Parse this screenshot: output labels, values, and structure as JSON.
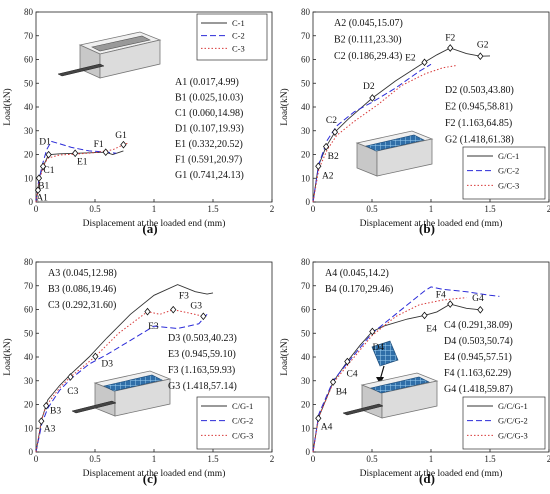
{
  "colors": {
    "series1": "#333333",
    "series2": "#2b2bd8",
    "series3": "#d83a3a",
    "grid": "#cccccc"
  },
  "chart_data": [
    {
      "type": "line",
      "panel_label": "(a)",
      "xlabel": "Displacement at the loaded end (mm)",
      "ylabel": "Load(kN)",
      "xlim": [
        0,
        2
      ],
      "ylim": [
        0,
        80
      ],
      "xticks": [
        0,
        0.5,
        1,
        1.5,
        2
      ],
      "yticks": [
        0,
        10,
        20,
        30,
        40,
        50,
        60,
        70,
        80
      ],
      "grid": false,
      "legend_position": "top-right",
      "series": [
        {
          "name": "C-1",
          "style": "solid",
          "x": [
            0,
            0.017,
            0.025,
            0.06,
            0.107,
            0.2,
            0.332,
            0.45,
            0.591,
            0.65,
            0.741
          ],
          "y": [
            0,
            4.99,
            10.03,
            14.98,
            19.93,
            20.3,
            20.52,
            20.7,
            20.97,
            20.0,
            21.5
          ]
        },
        {
          "name": "C-2",
          "style": "dashed",
          "x": [
            0,
            0.02,
            0.05,
            0.09,
            0.13,
            0.2,
            0.3,
            0.45,
            0.6,
            0.68
          ],
          "y": [
            0,
            8,
            15,
            22,
            25.5,
            24.5,
            23,
            21.5,
            21,
            20.5
          ]
        },
        {
          "name": "C-3",
          "style": "dotted",
          "x": [
            0,
            0.03,
            0.06,
            0.1,
            0.2,
            0.35,
            0.5,
            0.65,
            0.741,
            0.78
          ],
          "y": [
            0,
            9,
            15,
            18.5,
            19.8,
            20.2,
            20.8,
            22,
            24.13,
            24.8
          ]
        }
      ],
      "points": [
        {
          "label": "A1",
          "x": 0.017,
          "y": 4.99,
          "dx": 0.035,
          "dy": -3
        },
        {
          "label": "B1",
          "x": 0.025,
          "y": 10.03,
          "dx": 0.04,
          "dy": -3
        },
        {
          "label": "C1",
          "x": 0.06,
          "y": 14.98,
          "dx": 0.05,
          "dy": -1.5
        },
        {
          "label": "D1",
          "x": 0.107,
          "y": 19.93,
          "dx": -0.03,
          "dy": 5.5
        },
        {
          "label": "E1",
          "x": 0.332,
          "y": 20.52,
          "dx": 0.06,
          "dy": -3.5
        },
        {
          "label": "F1",
          "x": 0.591,
          "y": 20.97,
          "dx": -0.06,
          "dy": 3.5
        },
        {
          "label": "G1",
          "x": 0.741,
          "y": 24.13,
          "dx": -0.02,
          "dy": 4
        }
      ],
      "annotations": [
        "A1 (0.017,4.99)",
        "B1 (0.025,10.03)",
        "C1 (0.060,14.98)",
        "D1 (0.107,19.93)",
        "E1 (0.332,20.52)",
        "F1 (0.591,20.97)",
        "G1 (0.741,24.13)"
      ]
    },
    {
      "type": "line",
      "panel_label": "(b)",
      "xlabel": "Displacement at the loaded end (mm)",
      "ylabel": "Load(kN)",
      "xlim": [
        0,
        2
      ],
      "ylim": [
        0,
        80
      ],
      "xticks": [
        0,
        0.5,
        1,
        1.5,
        2
      ],
      "yticks": [
        0,
        10,
        20,
        30,
        40,
        50,
        60,
        70,
        80
      ],
      "grid": false,
      "legend_position": "bottom-right",
      "series": [
        {
          "name": "G/C-1",
          "style": "solid",
          "x": [
            0,
            0.045,
            0.111,
            0.186,
            0.3,
            0.503,
            0.7,
            0.945,
            1.05,
            1.163,
            1.3,
            1.418,
            1.5
          ],
          "y": [
            0,
            15.07,
            23.3,
            29.43,
            35,
            43.8,
            51,
            58.81,
            62,
            64.85,
            62.5,
            61.38,
            61.5
          ]
        },
        {
          "name": "G/C-2",
          "style": "dashed",
          "x": [
            0,
            0.05,
            0.12,
            0.2,
            0.35,
            0.5,
            0.7,
            0.9,
            1.0
          ],
          "y": [
            0,
            16,
            26,
            32,
            38,
            42,
            48,
            55,
            58
          ]
        },
        {
          "name": "G/C-3",
          "style": "dotted",
          "x": [
            0,
            0.05,
            0.12,
            0.2,
            0.35,
            0.55,
            0.75,
            0.95,
            1.1,
            1.22
          ],
          "y": [
            0,
            14,
            22,
            28,
            34,
            41,
            49,
            54,
            56.5,
            57.5
          ]
        }
      ],
      "points": [
        {
          "label": "A2",
          "x": 0.045,
          "y": 15.07,
          "dx": 0.08,
          "dy": -4
        },
        {
          "label": "B2",
          "x": 0.111,
          "y": 23.3,
          "dx": 0.06,
          "dy": -4
        },
        {
          "label": "C2",
          "x": 0.186,
          "y": 29.43,
          "dx": -0.03,
          "dy": 5
        },
        {
          "label": "D2",
          "x": 0.503,
          "y": 43.8,
          "dx": -0.03,
          "dy": 5
        },
        {
          "label": "E2",
          "x": 0.945,
          "y": 58.81,
          "dx": -0.12,
          "dy": 2
        },
        {
          "label": "F2",
          "x": 1.163,
          "y": 64.85,
          "dx": 0.0,
          "dy": 4.5
        },
        {
          "label": "G2",
          "x": 1.418,
          "y": 61.38,
          "dx": 0.02,
          "dy": 5
        }
      ],
      "annotations": [
        "A2 (0.045,15.07)",
        "B2 (0.111,23.30)",
        "C2 (0.186,29.43)",
        "D2 (0.503,43.80)",
        "E2 (0.945,58.81)",
        "F2 (1.163,64.85)",
        "G2 (1.418,61.38)"
      ]
    },
    {
      "type": "line",
      "panel_label": "(c)",
      "xlabel": "Displacement at the loaded end (mm)",
      "ylabel": "Load(kN)",
      "xlim": [
        0,
        2
      ],
      "ylim": [
        0,
        80
      ],
      "xticks": [
        0,
        0.5,
        1,
        1.5,
        2
      ],
      "yticks": [
        0,
        10,
        20,
        30,
        40,
        50,
        60,
        70,
        80
      ],
      "grid": false,
      "legend_position": "bottom-right",
      "series": [
        {
          "name": "C/G-1",
          "style": "solid",
          "x": [
            0,
            0.05,
            0.1,
            0.2,
            0.3,
            0.45,
            0.6,
            0.8,
            1.0,
            1.2,
            1.35,
            1.45,
            1.5
          ],
          "y": [
            0,
            14,
            22,
            28,
            33,
            40,
            48,
            58,
            66,
            70.5,
            67.5,
            66.5,
            67
          ]
        },
        {
          "name": "C/G-2",
          "style": "dashed",
          "x": [
            0,
            0.05,
            0.1,
            0.2,
            0.3,
            0.45,
            0.6,
            0.8,
            1.0,
            1.2,
            1.38,
            1.45
          ],
          "y": [
            0,
            12,
            18.5,
            26,
            31,
            37,
            41,
            47,
            53,
            52,
            54,
            58
          ]
        },
        {
          "name": "C/G-3",
          "style": "dotted",
          "x": [
            0,
            0.045,
            0.086,
            0.2,
            0.292,
            0.4,
            0.503,
            0.7,
            0.945,
            1.05,
            1.163,
            1.3,
            1.418
          ],
          "y": [
            0,
            12.98,
            19.46,
            27,
            31.6,
            36,
            40.23,
            50,
            59.1,
            58,
            59.93,
            58.5,
            57.14
          ]
        }
      ],
      "points": [
        {
          "label": "A3",
          "x": 0.045,
          "y": 12.98,
          "dx": 0.07,
          "dy": -3
        },
        {
          "label": "B3",
          "x": 0.086,
          "y": 19.46,
          "dx": 0.08,
          "dy": -2
        },
        {
          "label": "C3",
          "x": 0.292,
          "y": 31.6,
          "dx": 0.02,
          "dy": -6
        },
        {
          "label": "D3",
          "x": 0.503,
          "y": 40.23,
          "dx": 0.1,
          "dy": -3
        },
        {
          "label": "E3",
          "x": 0.945,
          "y": 59.1,
          "dx": 0.05,
          "dy": -6
        },
        {
          "label": "F3",
          "x": 1.163,
          "y": 59.93,
          "dx": 0.09,
          "dy": 6
        },
        {
          "label": "G3",
          "x": 1.418,
          "y": 57.14,
          "dx": -0.06,
          "dy": 4.5
        }
      ],
      "annotations": [
        "A3 (0.045,12.98)",
        "B3 (0.086,19.46)",
        "C3 (0.292,31.60)",
        "D3 (0.503,40.23)",
        "E3 (0.945,59.10)",
        "F3 (1.163,59.93)",
        "G3 (1.418,57.14)"
      ]
    },
    {
      "type": "line",
      "panel_label": "(d)",
      "xlabel": "Displacement at the loaded end (mm)",
      "ylabel": "Load(kN)",
      "xlim": [
        0,
        2
      ],
      "ylim": [
        0,
        80
      ],
      "xticks": [
        0,
        0.5,
        1,
        1.5,
        2
      ],
      "yticks": [
        0,
        10,
        20,
        30,
        40,
        50,
        60,
        70,
        80
      ],
      "grid": false,
      "legend_position": "bottom-right",
      "series": [
        {
          "name": "G/C/G-1",
          "style": "solid",
          "x": [
            0,
            0.045,
            0.17,
            0.291,
            0.4,
            0.503,
            0.6,
            0.8,
            0.945,
            1.05,
            1.163,
            1.3,
            1.418
          ],
          "y": [
            0,
            14.2,
            29.46,
            38.09,
            45,
            50.74,
            53,
            56,
            57.51,
            59,
            62.29,
            60.5,
            59.87
          ]
        },
        {
          "name": "G/C/G-2",
          "style": "dashed",
          "x": [
            0,
            0.05,
            0.17,
            0.3,
            0.5,
            0.7,
            0.85,
            0.95,
            1.0,
            1.1,
            1.3,
            1.5,
            1.58
          ],
          "y": [
            0,
            16,
            30,
            38,
            50,
            58,
            64,
            68,
            69.5,
            68.5,
            67.5,
            66,
            65.5
          ]
        },
        {
          "name": "G/C/G-3",
          "style": "dotted",
          "x": [
            0,
            0.05,
            0.17,
            0.3,
            0.5,
            0.7,
            0.9,
            1.1,
            1.2,
            1.3
          ],
          "y": [
            0,
            15,
            29,
            37,
            49,
            57,
            62,
            64,
            64.5,
            65
          ]
        }
      ],
      "points": [
        {
          "label": "A4",
          "x": 0.045,
          "y": 14.2,
          "dx": 0.07,
          "dy": -3.5
        },
        {
          "label": "B4",
          "x": 0.17,
          "y": 29.46,
          "dx": 0.07,
          "dy": -4
        },
        {
          "label": "C4",
          "x": 0.291,
          "y": 38.09,
          "dx": 0.04,
          "dy": -5
        },
        {
          "label": "D4",
          "x": 0.503,
          "y": 50.74,
          "dx": 0.05,
          "dy": -6.5
        },
        {
          "label": "E4",
          "x": 0.945,
          "y": 57.51,
          "dx": 0.06,
          "dy": -5.5
        },
        {
          "label": "F4",
          "x": 1.163,
          "y": 62.29,
          "dx": -0.08,
          "dy": 4
        },
        {
          "label": "G4",
          "x": 1.418,
          "y": 59.87,
          "dx": -0.02,
          "dy": 5
        }
      ],
      "annotations": [
        "A4 (0.045,14.2)",
        "B4 (0.170,29.46)",
        "C4 (0.291,38.09)",
        "D4 (0.503,50.74)",
        "E4 (0.945,57.51)",
        "F4 (1.163,62.29)",
        "G4 (1.418,59.87)"
      ]
    }
  ]
}
